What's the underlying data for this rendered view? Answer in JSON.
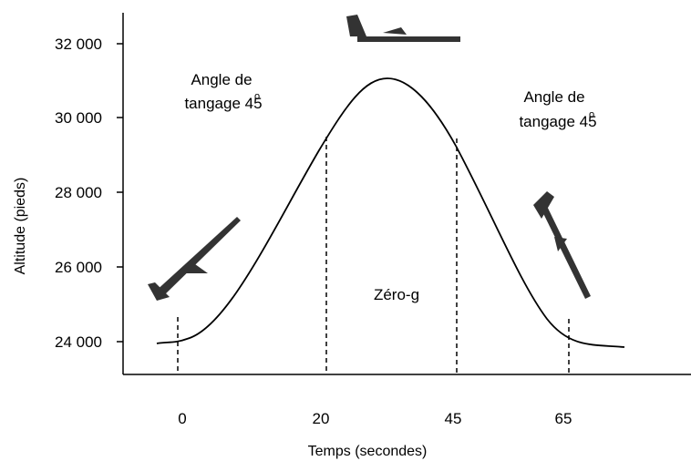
{
  "y_axis": {
    "label": "Altitude (pieds)",
    "ticks": [
      "32 000",
      "30 000",
      "28 000",
      "26 000",
      "24 000"
    ]
  },
  "x_axis": {
    "label": "Temps (secondes)",
    "ticks": [
      "0",
      "20",
      "45",
      "65"
    ]
  },
  "annotations": {
    "left": {
      "line1": "Angle de",
      "line2": "tangage 45",
      "sup": "o"
    },
    "right": {
      "line1": "Angle de",
      "line2": "tangage 45",
      "sup": "o"
    },
    "center": "Zéro-g"
  }
}
